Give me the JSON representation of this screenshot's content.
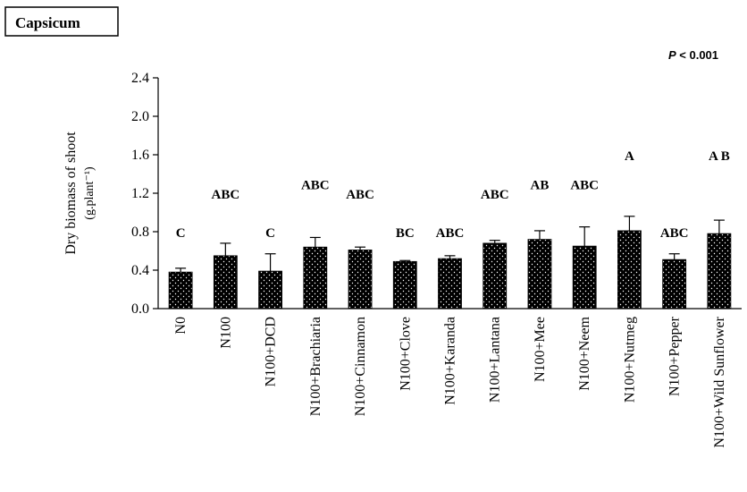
{
  "chart_data": {
    "type": "bar",
    "panel_label": "Capsicum",
    "significance_prefix": "P",
    "significance_rest": " < 0.001",
    "ylabel_line1": "Dry biomass of shoot",
    "ylabel_line2": "(g.plant⁻¹)",
    "ylim": [
      0,
      2.4
    ],
    "yticks": [
      "0.0",
      "0.4",
      "0.8",
      "1.2",
      "1.6",
      "2.0",
      "2.4"
    ],
    "ytick_values": [
      0,
      0.4,
      0.8,
      1.2,
      1.6,
      2.0,
      2.4
    ],
    "categories": [
      "N0",
      "N100",
      "N100+DCD",
      "N100+Brachiaria",
      "N100+Cinnamon",
      "N100+Clove",
      "N100+Karanda",
      "N100+Lantana",
      "N100+Mee",
      "N100+Neem",
      "N100+Nutmeg",
      "N100+Pepper",
      "N100+Wild Sunflower"
    ],
    "values": [
      0.38,
      0.55,
      0.39,
      0.64,
      0.61,
      0.49,
      0.52,
      0.68,
      0.72,
      0.65,
      0.81,
      0.51,
      0.78
    ],
    "errors": [
      0.04,
      0.13,
      0.18,
      0.1,
      0.03,
      0.01,
      0.03,
      0.03,
      0.09,
      0.2,
      0.15,
      0.06,
      0.14
    ],
    "letters": [
      "C",
      "ABC",
      "C",
      "ABC",
      "ABC",
      "BC",
      "ABC",
      "ABC",
      "AB",
      "ABC",
      "A",
      "ABC",
      "A B"
    ],
    "letter_y": [
      0.8,
      1.2,
      0.8,
      1.3,
      1.2,
      0.8,
      0.8,
      1.2,
      1.3,
      1.3,
      1.6,
      0.8,
      1.6
    ],
    "bar_color": "#000000",
    "grid": false,
    "legend": "none"
  }
}
